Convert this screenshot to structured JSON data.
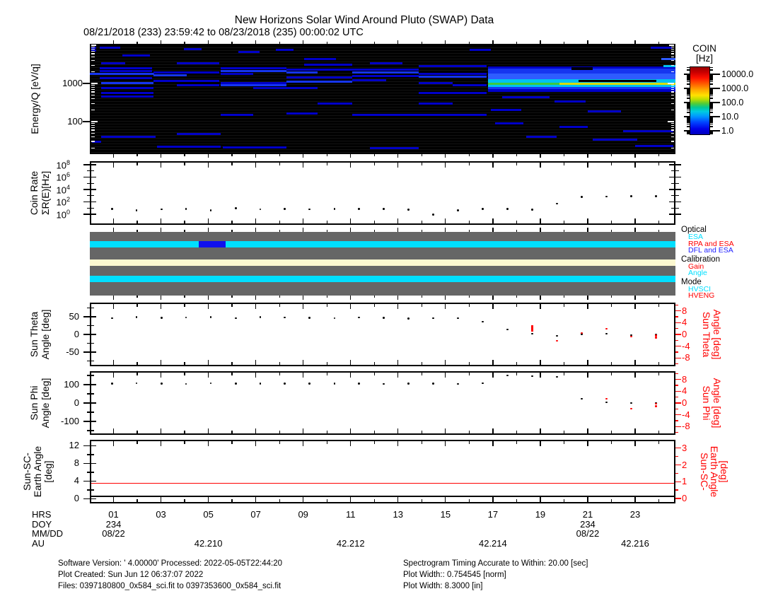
{
  "title": "New Horizons Solar Wind Around Pluto (SWAP) Data",
  "subtitle": "08/21/2018 (233) 23:59:42 to 08/23/2018 (235) 00:00:02 UTC",
  "colors": {
    "red": "#FF0000",
    "cyan": "#00DFFF",
    "blue": "#1010EE",
    "gray_bar": "#666666",
    "cream": "#FCF8D0",
    "frame": "#000000",
    "spectrogram_bg": "#000000"
  },
  "colorbar": {
    "title_line1": "COIN",
    "title_line2": "[Hz]",
    "tick_labels": [
      "10000.0",
      "1000.0",
      "100.0",
      "10.0",
      "1.0"
    ]
  },
  "panels": {
    "spectrogram": {
      "ylabel": "Energy/Q [eV/q]"
    },
    "coin_rate": {
      "ylabel_line1": "Coin Rate",
      "ylabel_line2": "ΣR(E)[Hz]"
    },
    "sun_theta": {
      "ylabel_line1": "Sun Theta",
      "ylabel_line2": "Angle [deg]"
    },
    "sun_phi": {
      "ylabel_line1": "Sun Phi",
      "ylabel_line2": "Angle [deg]"
    },
    "sun_sc_earth": {
      "ylabel_line1": "Sun-SC-",
      "ylabel_line2": "Earth Angle",
      "ylabel_line3": "[deg]"
    }
  },
  "xaxis": {
    "row_labels": [
      "HRS",
      "DOY",
      "MM/DD",
      "AU"
    ],
    "hours": [
      {
        "v": 1,
        "label": "01"
      },
      {
        "v": 3,
        "label": "03"
      },
      {
        "v": 5,
        "label": "05"
      },
      {
        "v": 7,
        "label": "07"
      },
      {
        "v": 9,
        "label": "09"
      },
      {
        "v": 11,
        "label": "11"
      },
      {
        "v": 13,
        "label": "13"
      },
      {
        "v": 15,
        "label": "15"
      },
      {
        "v": 17,
        "label": "17"
      },
      {
        "v": 19,
        "label": "19"
      },
      {
        "v": 21,
        "label": "21"
      },
      {
        "v": 23,
        "label": "23"
      }
    ],
    "day_marks": [
      {
        "v": 1,
        "doy": "234",
        "mmdd": "08/22"
      },
      {
        "v": 21,
        "doy": "234",
        "mmdd": "08/22"
      }
    ],
    "au_marks": [
      {
        "v": 5,
        "label": "42.210"
      },
      {
        "v": 11,
        "label": "42.212"
      },
      {
        "v": 17,
        "label": "42.214"
      },
      {
        "v": 23,
        "label": "42.216"
      }
    ]
  },
  "footer": {
    "left": [
      "Software Version:  ' 4.00000'  Processed: 2022-05-05T22:44:20",
      "Plot Created: Sun Jun 12 06:37:07 2022",
      "Files: 0397180800_0x584_sci.fit to 0397353600_0x584_sci.fit"
    ],
    "right": [
      "Spectrogram Timing Accurate to Within: 20.00 [sec]",
      "Plot Width:: 0.754545 [norm]",
      "Plot Width: 8.3000 [in]"
    ]
  },
  "chart_data": [
    {
      "type": "heatmap",
      "title": "Energy/Q spectrogram",
      "ylabel": "Energy/Q [eV/q]",
      "yscale": "log",
      "ylim": [
        14,
        10900
      ],
      "x_hours_lim": [
        0,
        24.7
      ],
      "ytick_labels": [
        {
          "v": 1000,
          "label": "1000"
        },
        {
          "v": 100,
          "label": "100"
        }
      ],
      "colorbar_label": "COIN [Hz]",
      "colorbar_ticks": [
        10000.0,
        1000.0,
        100.0,
        10.0,
        1.0
      ],
      "colorscale": {
        "B": "#0000C8",
        "B2": "#1535F0",
        "LB": "#2E5CFF",
        "CY": "#00C0F0",
        "GR": "#3CC83C",
        "Y": "#D8DC00",
        "BK": "#000000"
      },
      "segments": [
        [
          0.05,
          0.28,
          8500,
          "B"
        ],
        [
          0.05,
          0.28,
          7300,
          "B"
        ],
        [
          0.42,
          1.28,
          8500,
          "B"
        ],
        [
          1.37,
          2.54,
          5300,
          "B"
        ],
        [
          0.48,
          1.49,
          3400,
          "B"
        ],
        [
          0.42,
          2.63,
          2500,
          "B"
        ],
        [
          0.42,
          2.63,
          2100,
          "B"
        ],
        [
          0,
          2.7,
          1750,
          "B2"
        ],
        [
          0.42,
          2.63,
          1400,
          "B"
        ],
        [
          0.48,
          2.69,
          1000,
          "B2"
        ],
        [
          0.48,
          2.69,
          760,
          "B"
        ],
        [
          0.48,
          2.69,
          550,
          "B"
        ],
        [
          0.48,
          2.69,
          460,
          "B"
        ],
        [
          0.48,
          2.78,
          40,
          "B"
        ],
        [
          0.09,
          0.48,
          30,
          "B"
        ],
        [
          3.67,
          5.46,
          3300,
          "B"
        ],
        [
          2.69,
          5.46,
          1950,
          "B"
        ],
        [
          2.69,
          4.1,
          1650,
          "B2"
        ],
        [
          2.69,
          5.46,
          1150,
          "B"
        ],
        [
          3.67,
          5.46,
          900,
          "B"
        ],
        [
          3.67,
          5.52,
          48,
          "B"
        ],
        [
          2.83,
          5.52,
          22,
          "B"
        ],
        [
          3.97,
          4.71,
          8000,
          "B"
        ],
        [
          6.27,
          7.16,
          6800,
          "B"
        ],
        [
          7.85,
          8.59,
          7500,
          "B"
        ],
        [
          5.52,
          8.29,
          2500,
          "B"
        ],
        [
          5.52,
          8.29,
          2100,
          "B2"
        ],
        [
          5.52,
          6.9,
          1800,
          "B"
        ],
        [
          5.52,
          8.29,
          1000,
          "B"
        ],
        [
          5.52,
          8.29,
          900,
          "B2"
        ],
        [
          6.9,
          8.29,
          760,
          "B"
        ],
        [
          5.52,
          6.9,
          150,
          "B"
        ],
        [
          5.6,
          8.29,
          21,
          "B"
        ],
        [
          9.04,
          10.38,
          4300,
          "B"
        ],
        [
          9.04,
          11.07,
          3100,
          "B"
        ],
        [
          8.29,
          11.07,
          2300,
          "B"
        ],
        [
          8.29,
          9.6,
          1950,
          "B2"
        ],
        [
          8.29,
          11.07,
          1450,
          "B"
        ],
        [
          8.29,
          11.07,
          1100,
          "B2"
        ],
        [
          8.29,
          9.6,
          760,
          "B"
        ],
        [
          9.6,
          11.07,
          300,
          "B"
        ],
        [
          8.29,
          9.6,
          160,
          "B"
        ],
        [
          11.07,
          13.87,
          2300,
          "B"
        ],
        [
          11.07,
          13.87,
          1900,
          "B2"
        ],
        [
          11.07,
          13.87,
          1550,
          "B"
        ],
        [
          11.07,
          12.5,
          1200,
          "B"
        ],
        [
          11.8,
          13.2,
          3300,
          "B"
        ],
        [
          11.07,
          13.87,
          150,
          "B"
        ],
        [
          11.8,
          13.87,
          20,
          "B"
        ],
        [
          13.87,
          16.74,
          2900,
          "B"
        ],
        [
          13.87,
          16.74,
          1800,
          "B"
        ],
        [
          13.87,
          16.74,
          1500,
          "B2"
        ],
        [
          13.87,
          15.3,
          1000,
          "B"
        ],
        [
          15.3,
          16.74,
          880,
          "B"
        ],
        [
          13.87,
          16.74,
          550,
          "B"
        ],
        [
          13.87,
          15.3,
          300,
          "B"
        ],
        [
          13.87,
          16.74,
          150,
          "B"
        ],
        [
          16.02,
          16.92,
          7500,
          "B"
        ],
        [
          16.8,
          24.7,
          2600,
          "B",
          4
        ],
        [
          16.8,
          24.7,
          2250,
          "B2",
          4
        ],
        [
          16.8,
          24.7,
          1900,
          "B2",
          4
        ],
        [
          16.8,
          24.7,
          1650,
          "LB",
          4
        ],
        [
          16.8,
          24.7,
          1400,
          "LB",
          4
        ],
        [
          16.8,
          24.7,
          1200,
          "CY",
          4
        ],
        [
          16.8,
          24.7,
          1050,
          "CY",
          4
        ],
        [
          16.8,
          19.8,
          950,
          "GR",
          4
        ],
        [
          19.8,
          24.7,
          950,
          "Y",
          4
        ],
        [
          16.8,
          24.7,
          850,
          "CY",
          4
        ],
        [
          16.8,
          24.7,
          750,
          "B2",
          4
        ],
        [
          16.8,
          24.7,
          650,
          "B",
          4
        ],
        [
          20.3,
          21.2,
          2500,
          "BK",
          4
        ],
        [
          20.6,
          23.9,
          1150,
          "BK"
        ],
        [
          17.4,
          19.4,
          430,
          "B"
        ],
        [
          19.6,
          20.9,
          330,
          "B"
        ],
        [
          16.9,
          18.2,
          200,
          "B"
        ],
        [
          21,
          22.4,
          185,
          "B"
        ],
        [
          17.1,
          18.3,
          88,
          "B"
        ],
        [
          19.8,
          21,
          72,
          "B"
        ],
        [
          18.4,
          19.7,
          40,
          "B"
        ],
        [
          21.2,
          23.1,
          34,
          "B"
        ],
        [
          22.5,
          24.6,
          56,
          "B"
        ],
        [
          23,
          24.6,
          23,
          "B"
        ],
        [
          23.66,
          24.55,
          8800,
          "B"
        ],
        [
          24.1,
          24.7,
          4300,
          "LB"
        ],
        [
          24.2,
          24.7,
          2900,
          "CY"
        ]
      ]
    },
    {
      "type": "scatter",
      "title": "Coin Rate",
      "ylabel": "Coin Rate ΣR(E)[Hz]",
      "yscale": "log",
      "ylim": [
        0.019,
        370000000
      ],
      "ytick_exponents": [
        8,
        6,
        4,
        2,
        0
      ],
      "minor_exponents": [
        7,
        5,
        3,
        1
      ],
      "hours": [
        0.93,
        1.97,
        3.02,
        4.06,
        5.1,
        6.15,
        7.19,
        8.23,
        9.27,
        10.32,
        11.36,
        12.4,
        13.45,
        14.49,
        15.53,
        16.58,
        17.62,
        18.66,
        19.7,
        20.75,
        21.79,
        22.83,
        23.88
      ],
      "values": [
        6.5,
        4.5,
        6.2,
        6.5,
        4.4,
        9.5,
        6.2,
        7.0,
        6.2,
        7.6,
        6.8,
        7.2,
        6.0,
        0.8,
        4.0,
        6.5,
        6.5,
        5.0,
        52,
        650,
        700,
        750,
        760
      ]
    },
    {
      "type": "timeline",
      "title": "Instrument status bars",
      "rows": [
        {
          "name": "Optical",
          "base_color": "#00DFFF",
          "base_label": "ESA",
          "segments": [
            {
              "h0": 4.6,
              "h1": 5.73,
              "color": "#1010EE",
              "label": "DFL and ESA"
            }
          ]
        },
        {
          "name": "Calibration",
          "base_color": "#FCF8D0",
          "base_label": "",
          "segments": []
        },
        {
          "name": "Mode",
          "base_color": "#00DFFF",
          "base_label": "HVSCI",
          "segments": []
        }
      ],
      "legend": [
        {
          "header": "Optical",
          "items": [
            {
              "label": "ESA",
              "color": "#00DFFF"
            },
            {
              "label": "RPA and ESA",
              "color": "#FF0000"
            },
            {
              "label": "DFL and ESA",
              "color": "#2222FF"
            }
          ]
        },
        {
          "header": "Calibration",
          "items": [
            {
              "label": "Gain",
              "color": "#FF0000"
            },
            {
              "label": "Angle",
              "color": "#00DFFF"
            }
          ]
        },
        {
          "header": "Mode",
          "items": [
            {
              "label": "HVSCI",
              "color": "#00DFFF"
            },
            {
              "label": "HVENG",
              "color": "#FF0000"
            }
          ]
        }
      ]
    },
    {
      "type": "scatter",
      "title": "Sun Theta Angle",
      "ylabel": "Sun Theta Angle [deg]",
      "ylim": [
        -90,
        90
      ],
      "yticks": [
        50,
        0,
        -50
      ],
      "yminor": [
        75,
        25,
        -25,
        -75
      ],
      "right_ylabel": "Sun Theta Angle [deg]",
      "right_ylim": [
        -10.8,
        10.8
      ],
      "right_yticks": [
        8,
        4,
        0,
        -4,
        -8
      ],
      "right_yminor": [
        10,
        6,
        2,
        -2,
        -6,
        -10
      ],
      "hours": [
        0.93,
        1.97,
        3.02,
        4.06,
        5.1,
        6.15,
        7.19,
        8.23,
        9.27,
        10.32,
        11.36,
        12.4,
        13.45,
        14.49,
        15.53,
        16.58,
        17.62,
        18.66,
        19.7,
        20.75,
        21.79,
        22.83,
        23.88
      ],
      "black_values": [
        46,
        49,
        47,
        48,
        49,
        46,
        49,
        48,
        47,
        46,
        48,
        47,
        45,
        46,
        46,
        36,
        14,
        2,
        -4,
        1,
        2,
        -2,
        -1
      ],
      "red_points": [
        [
          19.7,
          -2.2
        ],
        [
          20.75,
          0.5
        ],
        [
          21.79,
          1.9
        ],
        [
          22.83,
          -0.7
        ],
        [
          23.88,
          -0.3
        ],
        [
          23.88,
          -1.1
        ]
      ],
      "red_bars": [
        [
          18.66,
          1.0,
          3.2
        ]
      ]
    },
    {
      "type": "scatter",
      "title": "Sun Phi Angle",
      "ylabel": "Sun Phi Angle [deg]",
      "ylim": [
        -173,
        173
      ],
      "yticks": [
        100,
        0,
        -100
      ],
      "yminor": [
        150,
        50,
        -50,
        -150
      ],
      "right_ylabel": "Sun Phi Angle [deg]",
      "right_ylim": [
        -10.8,
        10.8
      ],
      "right_yticks": [
        8,
        4,
        0,
        -4,
        -8
      ],
      "right_yminor": [
        10,
        6,
        2,
        -2,
        -6,
        -10
      ],
      "hours": [
        0.93,
        1.97,
        3.02,
        4.06,
        5.1,
        6.15,
        7.19,
        8.23,
        9.27,
        10.32,
        11.36,
        12.4,
        13.45,
        14.49,
        15.53,
        16.58,
        17.62,
        18.66,
        19.7,
        20.75,
        21.79,
        22.83,
        23.88
      ],
      "black_values": [
        105,
        108,
        106,
        104,
        108,
        106,
        107,
        106,
        107,
        106,
        105,
        104,
        106,
        105,
        104,
        108,
        150,
        146,
        142,
        23,
        4,
        0,
        0
      ],
      "red_points": [
        [
          21.79,
          1.45
        ],
        [
          22.83,
          -1.9
        ],
        [
          23.88,
          -0.25
        ],
        [
          23.88,
          -1.1
        ]
      ],
      "red_bars": []
    },
    {
      "type": "line",
      "title": "Sun-SC-Earth Angle",
      "ylabel": "Sun-SC-Earth Angle [deg]",
      "ylim": [
        -1.05,
        13.35
      ],
      "yticks": [
        12,
        8,
        4,
        0
      ],
      "yminor": [
        10,
        6,
        2
      ],
      "right_ylabel": "Sun-SC-Earth Angle [deg]",
      "right_ylim": [
        -0.3,
        3.5
      ],
      "right_yticks": [
        3,
        2,
        1,
        0
      ],
      "right_yminor": [
        2.5,
        1.5,
        0.5
      ],
      "red_line_value_left_axis": 3.5,
      "black_line_value_left_axis": 0.55
    }
  ]
}
